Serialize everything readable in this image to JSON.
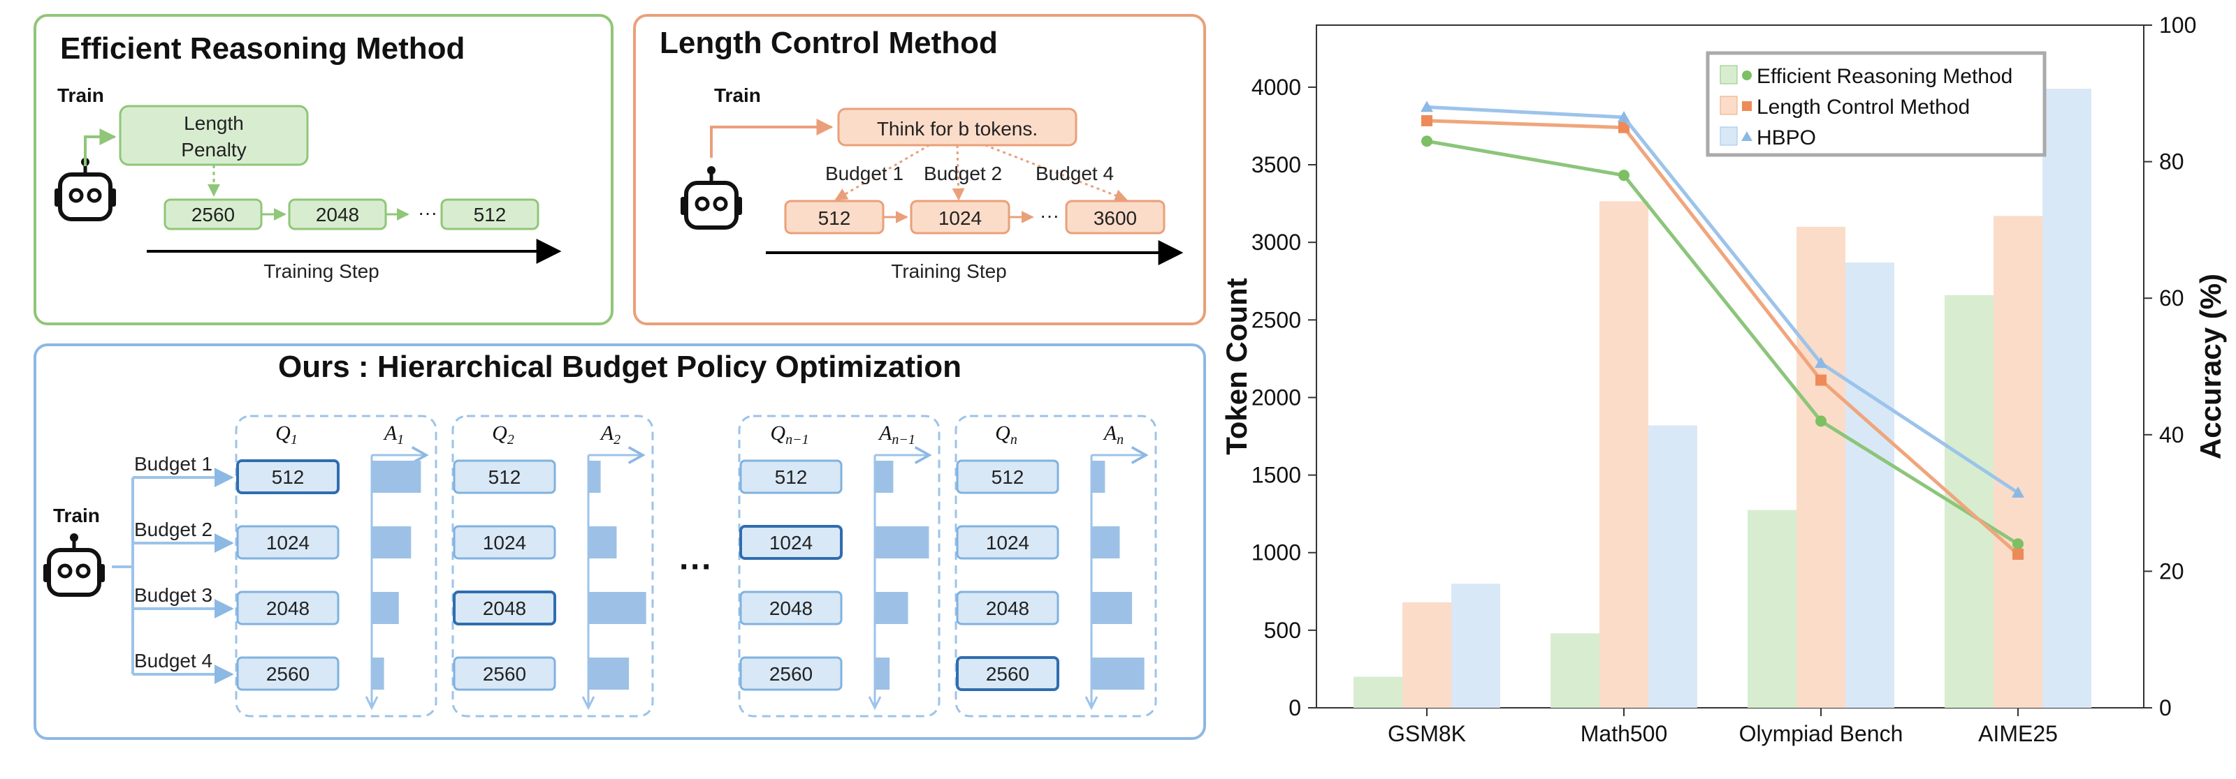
{
  "colors": {
    "green": "#8fc678",
    "green_fill": "#d8edd0",
    "green_line": "#8cc57a",
    "orange": "#e9a07a",
    "orange_fill": "#fbdcc9",
    "orange_line": "#f0a57c",
    "blue": "#7fb2e0",
    "blue_fill": "#d9e8f6",
    "blue_line": "#9cc3ea",
    "blue_dark": "#2f6db0"
  },
  "icons": {
    "robot": "robot-icon",
    "ellipsis": "ellipsis-icon"
  },
  "panel_eff": {
    "title": "Efficient Reasoning Method",
    "train": "Train",
    "penalty": "Length Penalty",
    "steps": [
      "2560",
      "2048",
      "512"
    ],
    "dots": "···",
    "axis": "Training Step"
  },
  "panel_len": {
    "title": "Length Control Method",
    "train": "Train",
    "prompt": "Think for b tokens.",
    "budget_labels": [
      "Budget 1",
      "Budget 2",
      "Budget 4"
    ],
    "steps": [
      "512",
      "1024",
      "3600"
    ],
    "dots": "···",
    "axis": "Training Step"
  },
  "panel_ours": {
    "title": "Ours : Hierarchical Budget Policy Optimization",
    "train": "Train",
    "budget_labels": [
      "Budget 1",
      "Budget 2",
      "Budget 3",
      "Budget 4"
    ],
    "budget_values": [
      "512",
      "1024",
      "2048",
      "2560"
    ],
    "ellipsis": "···",
    "groups": [
      {
        "q": "Q",
        "q_sub": "1",
        "a": "A",
        "a_sub": "1",
        "highlight": 0,
        "bars": [
          0.8,
          0.64,
          0.44,
          0.2
        ]
      },
      {
        "q": "Q",
        "q_sub": "2",
        "a": "A",
        "a_sub": "2",
        "highlight": 2,
        "bars": [
          0.2,
          0.46,
          0.94,
          0.66
        ]
      },
      {
        "q": "Q",
        "q_sub": "n−1",
        "a": "A",
        "a_sub": "n−1",
        "highlight": 1,
        "bars": [
          0.3,
          0.88,
          0.54,
          0.24
        ]
      },
      {
        "q": "Q",
        "q_sub": "n",
        "a": "A",
        "a_sub": "n",
        "highlight": 3,
        "bars": [
          0.22,
          0.46,
          0.66,
          0.86
        ]
      }
    ]
  },
  "chart_data": {
    "type": "bar",
    "categories": [
      "GSM8K",
      "Math500",
      "Olympiad Bench",
      "AIME25"
    ],
    "ylabel": "Token Count",
    "ylabel_right": "Accuracy (%)",
    "ylim": [
      0,
      4400
    ],
    "ylim_right": [
      0,
      100
    ],
    "yticks": [
      "0",
      "500",
      "1000",
      "1500",
      "2000",
      "2500",
      "3000",
      "3500",
      "4000"
    ],
    "yticks_right": [
      "0",
      "20",
      "40",
      "60",
      "80",
      "100"
    ],
    "bar_series": [
      {
        "name": "Efficient Reasoning Method",
        "values": [
          200,
          480,
          1275,
          2660
        ]
      },
      {
        "name": "Length Control Method",
        "values": [
          680,
          3265,
          3100,
          3170
        ]
      },
      {
        "name": "HBPO",
        "values": [
          800,
          1820,
          2870,
          3990
        ]
      }
    ],
    "line_series": [
      {
        "name": "Efficient Reasoning Method",
        "marker": "●",
        "values": [
          83,
          78,
          42,
          24
        ]
      },
      {
        "name": "Length Control Method",
        "marker": "■",
        "values": [
          86,
          85,
          48,
          22.5
        ]
      },
      {
        "name": "HBPO",
        "marker": "▲",
        "values": [
          88,
          86.5,
          50.5,
          31.5
        ]
      }
    ],
    "legend": [
      "Efficient Reasoning Method",
      "Length Control Method",
      "HBPO"
    ],
    "legend_position": "top-right",
    "grid": false
  }
}
